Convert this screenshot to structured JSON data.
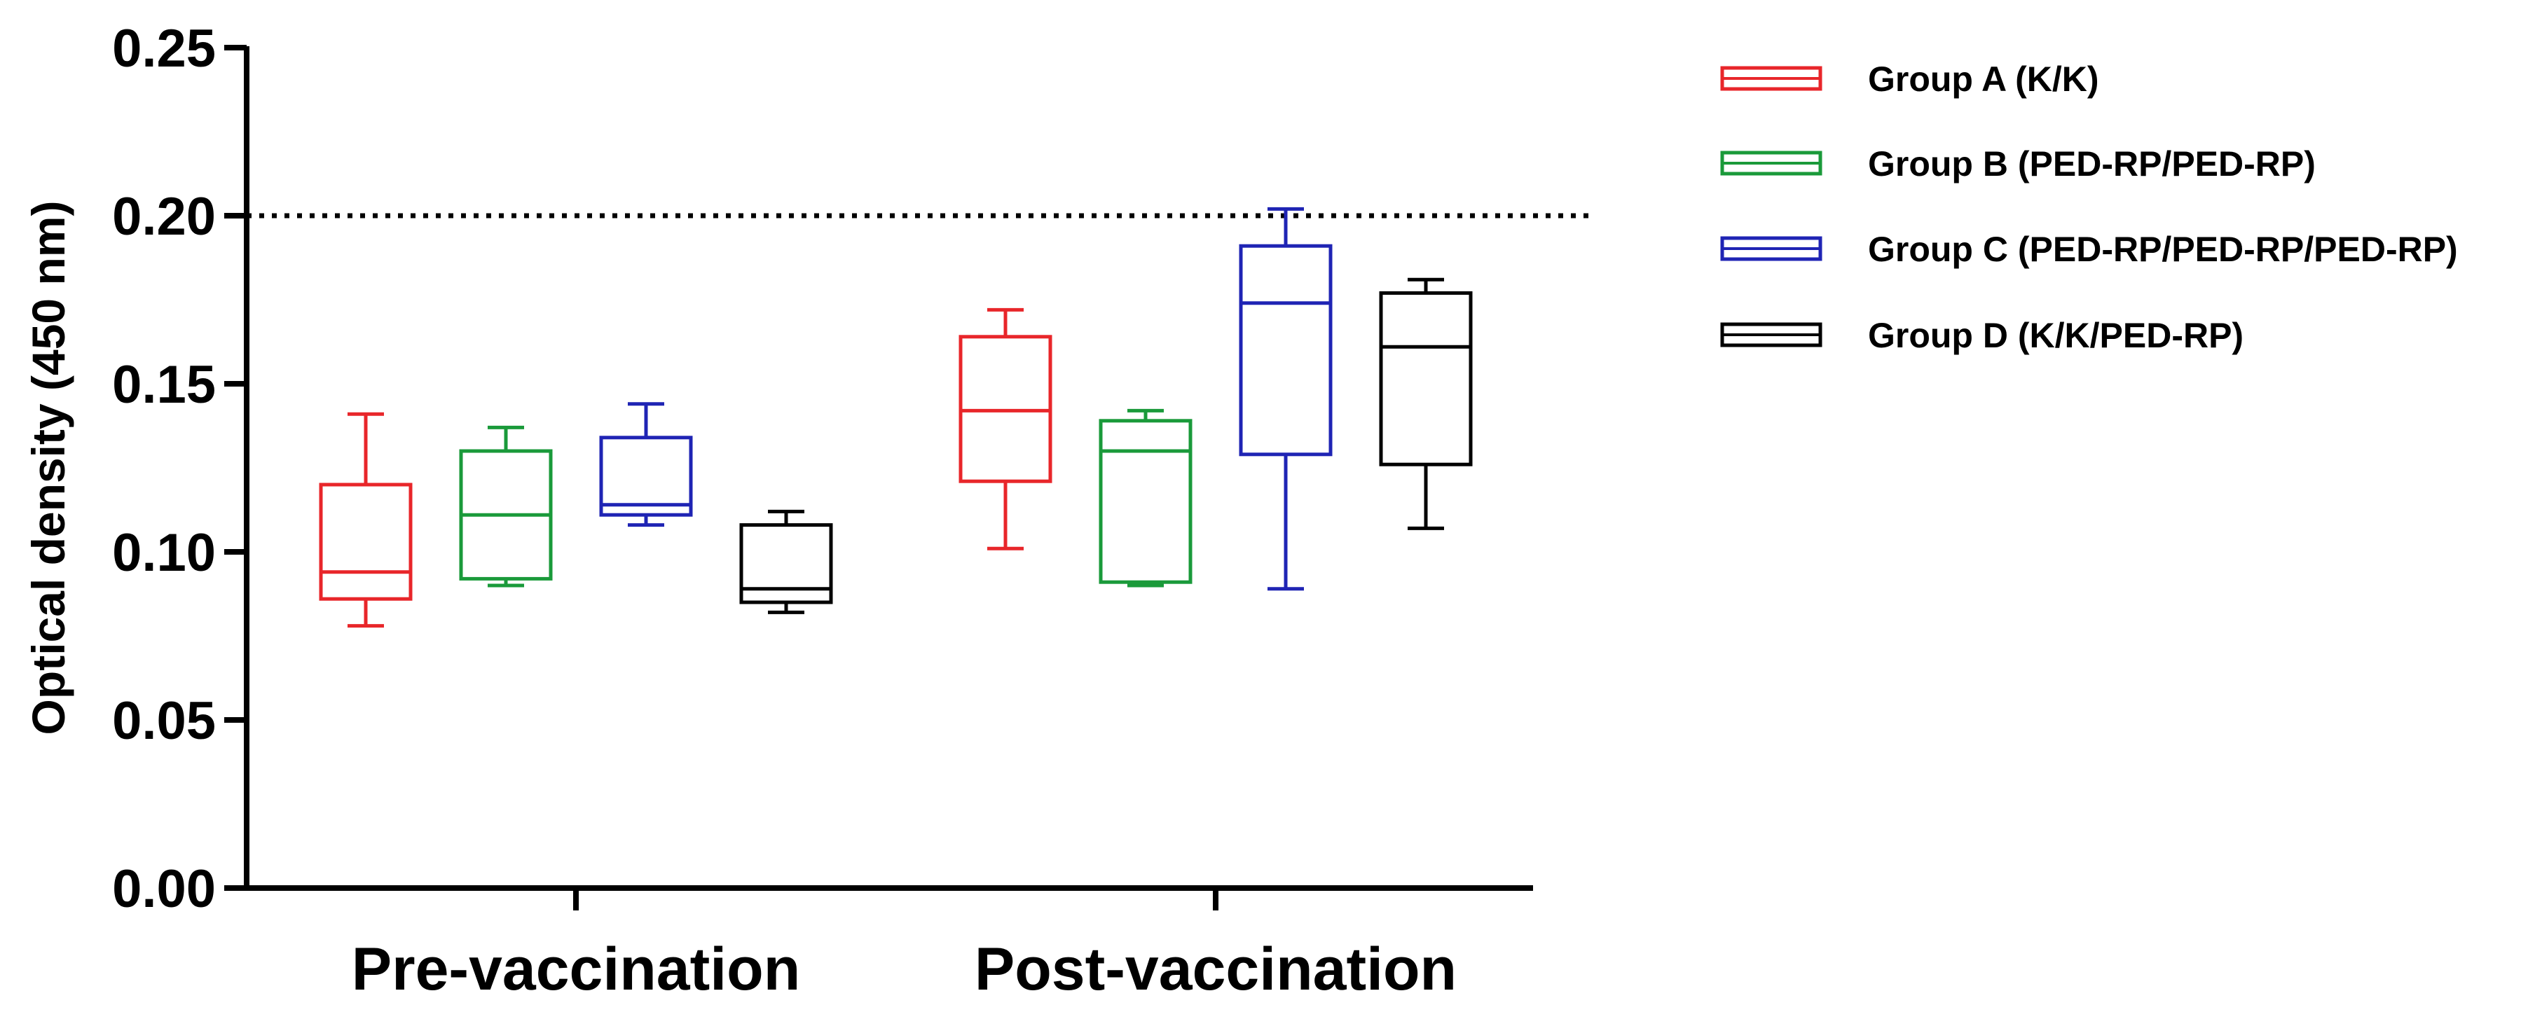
{
  "chart_data": {
    "type": "box",
    "title": "",
    "xlabel": "",
    "ylabel": "Optical density (450 nm)",
    "ylim": [
      0,
      0.25
    ],
    "yticks": [
      0.0,
      0.05,
      0.1,
      0.15,
      0.2,
      0.25
    ],
    "ytick_labels": [
      "0.00",
      "0.05",
      "0.10",
      "0.15",
      "0.20",
      "0.25"
    ],
    "categories": [
      "Pre-vaccination",
      "Post-vaccination"
    ],
    "reference_line": {
      "y": 0.2,
      "style": "dotted"
    },
    "legend_position": "top-right",
    "series": [
      {
        "name": "Group A (K/K)",
        "color": "#e8262a",
        "boxes": [
          {
            "min": 0.078,
            "q1": 0.086,
            "median": 0.094,
            "q3": 0.12,
            "max": 0.141
          },
          {
            "min": 0.101,
            "q1": 0.121,
            "median": 0.142,
            "q3": 0.164,
            "max": 0.172
          }
        ]
      },
      {
        "name": "Group B (PED-RP/PED-RP)",
        "color": "#1a9a3a",
        "boxes": [
          {
            "min": 0.09,
            "q1": 0.092,
            "median": 0.111,
            "q3": 0.13,
            "max": 0.137
          },
          {
            "min": 0.09,
            "q1": 0.091,
            "median": 0.13,
            "q3": 0.139,
            "max": 0.142
          }
        ]
      },
      {
        "name": "Group C (PED-RP/PED-RP/PED-RP)",
        "color": "#1f24b4",
        "boxes": [
          {
            "min": 0.108,
            "q1": 0.111,
            "median": 0.114,
            "q3": 0.134,
            "max": 0.144
          },
          {
            "min": 0.089,
            "q1": 0.129,
            "median": 0.174,
            "q3": 0.191,
            "max": 0.202
          }
        ]
      },
      {
        "name": "Group D (K/K/PED-RP)",
        "color": "#000000",
        "boxes": [
          {
            "min": 0.082,
            "q1": 0.085,
            "median": 0.089,
            "q3": 0.108,
            "max": 0.112
          },
          {
            "min": 0.107,
            "q1": 0.126,
            "median": 0.161,
            "q3": 0.177,
            "max": 0.181
          }
        ]
      }
    ]
  }
}
